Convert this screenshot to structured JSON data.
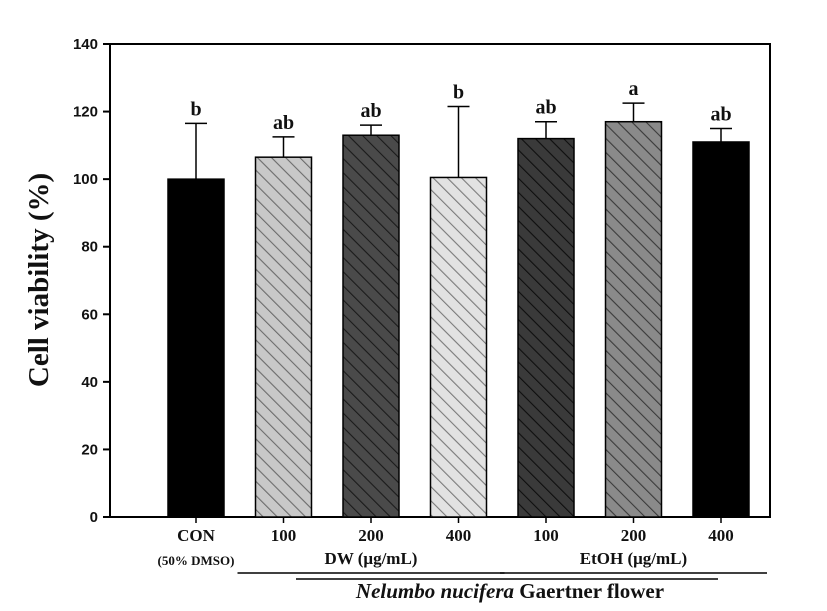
{
  "chart_data": {
    "type": "bar",
    "ylabel": "Cell viability (%)",
    "ylim": [
      0,
      140
    ],
    "yticks": [
      0,
      20,
      40,
      60,
      80,
      100,
      120,
      140
    ],
    "categories": [
      "CON",
      "100",
      "200",
      "400",
      "100",
      "200",
      "400"
    ],
    "control_sublabel": "(50% DMSO)",
    "values": [
      100,
      106.5,
      113,
      100.5,
      112,
      117,
      111
    ],
    "errors": [
      16.5,
      6,
      3,
      21,
      5,
      5.5,
      4
    ],
    "significance": [
      "b",
      "ab",
      "ab",
      "b",
      "ab",
      "a",
      "ab"
    ],
    "bar_styles": [
      {
        "fill": "#000000",
        "hatch": false,
        "hatch_color": ""
      },
      {
        "fill": "#c8c8c8",
        "hatch": true,
        "hatch_color": "#6b6b6b"
      },
      {
        "fill": "#4a4a4a",
        "hatch": true,
        "hatch_color": "#1a1a1a"
      },
      {
        "fill": "#e2e2e2",
        "hatch": true,
        "hatch_color": "#7a7a7a"
      },
      {
        "fill": "#3a3a3a",
        "hatch": true,
        "hatch_color": "#0e0e0e"
      },
      {
        "fill": "#8a8a8a",
        "hatch": true,
        "hatch_color": "#3a3a3a"
      },
      {
        "fill": "#000000",
        "hatch": false,
        "hatch_color": ""
      }
    ],
    "groups": [
      {
        "label": "DW (μg/mL)",
        "members": [
          1,
          2,
          3
        ]
      },
      {
        "label": "EtOH (μg/mL)",
        "members": [
          4,
          5,
          6
        ]
      }
    ],
    "footer": {
      "italic": "Nelumbo nucifera",
      "regular": " Gaertner flower"
    },
    "grid": false,
    "legend": "none"
  }
}
